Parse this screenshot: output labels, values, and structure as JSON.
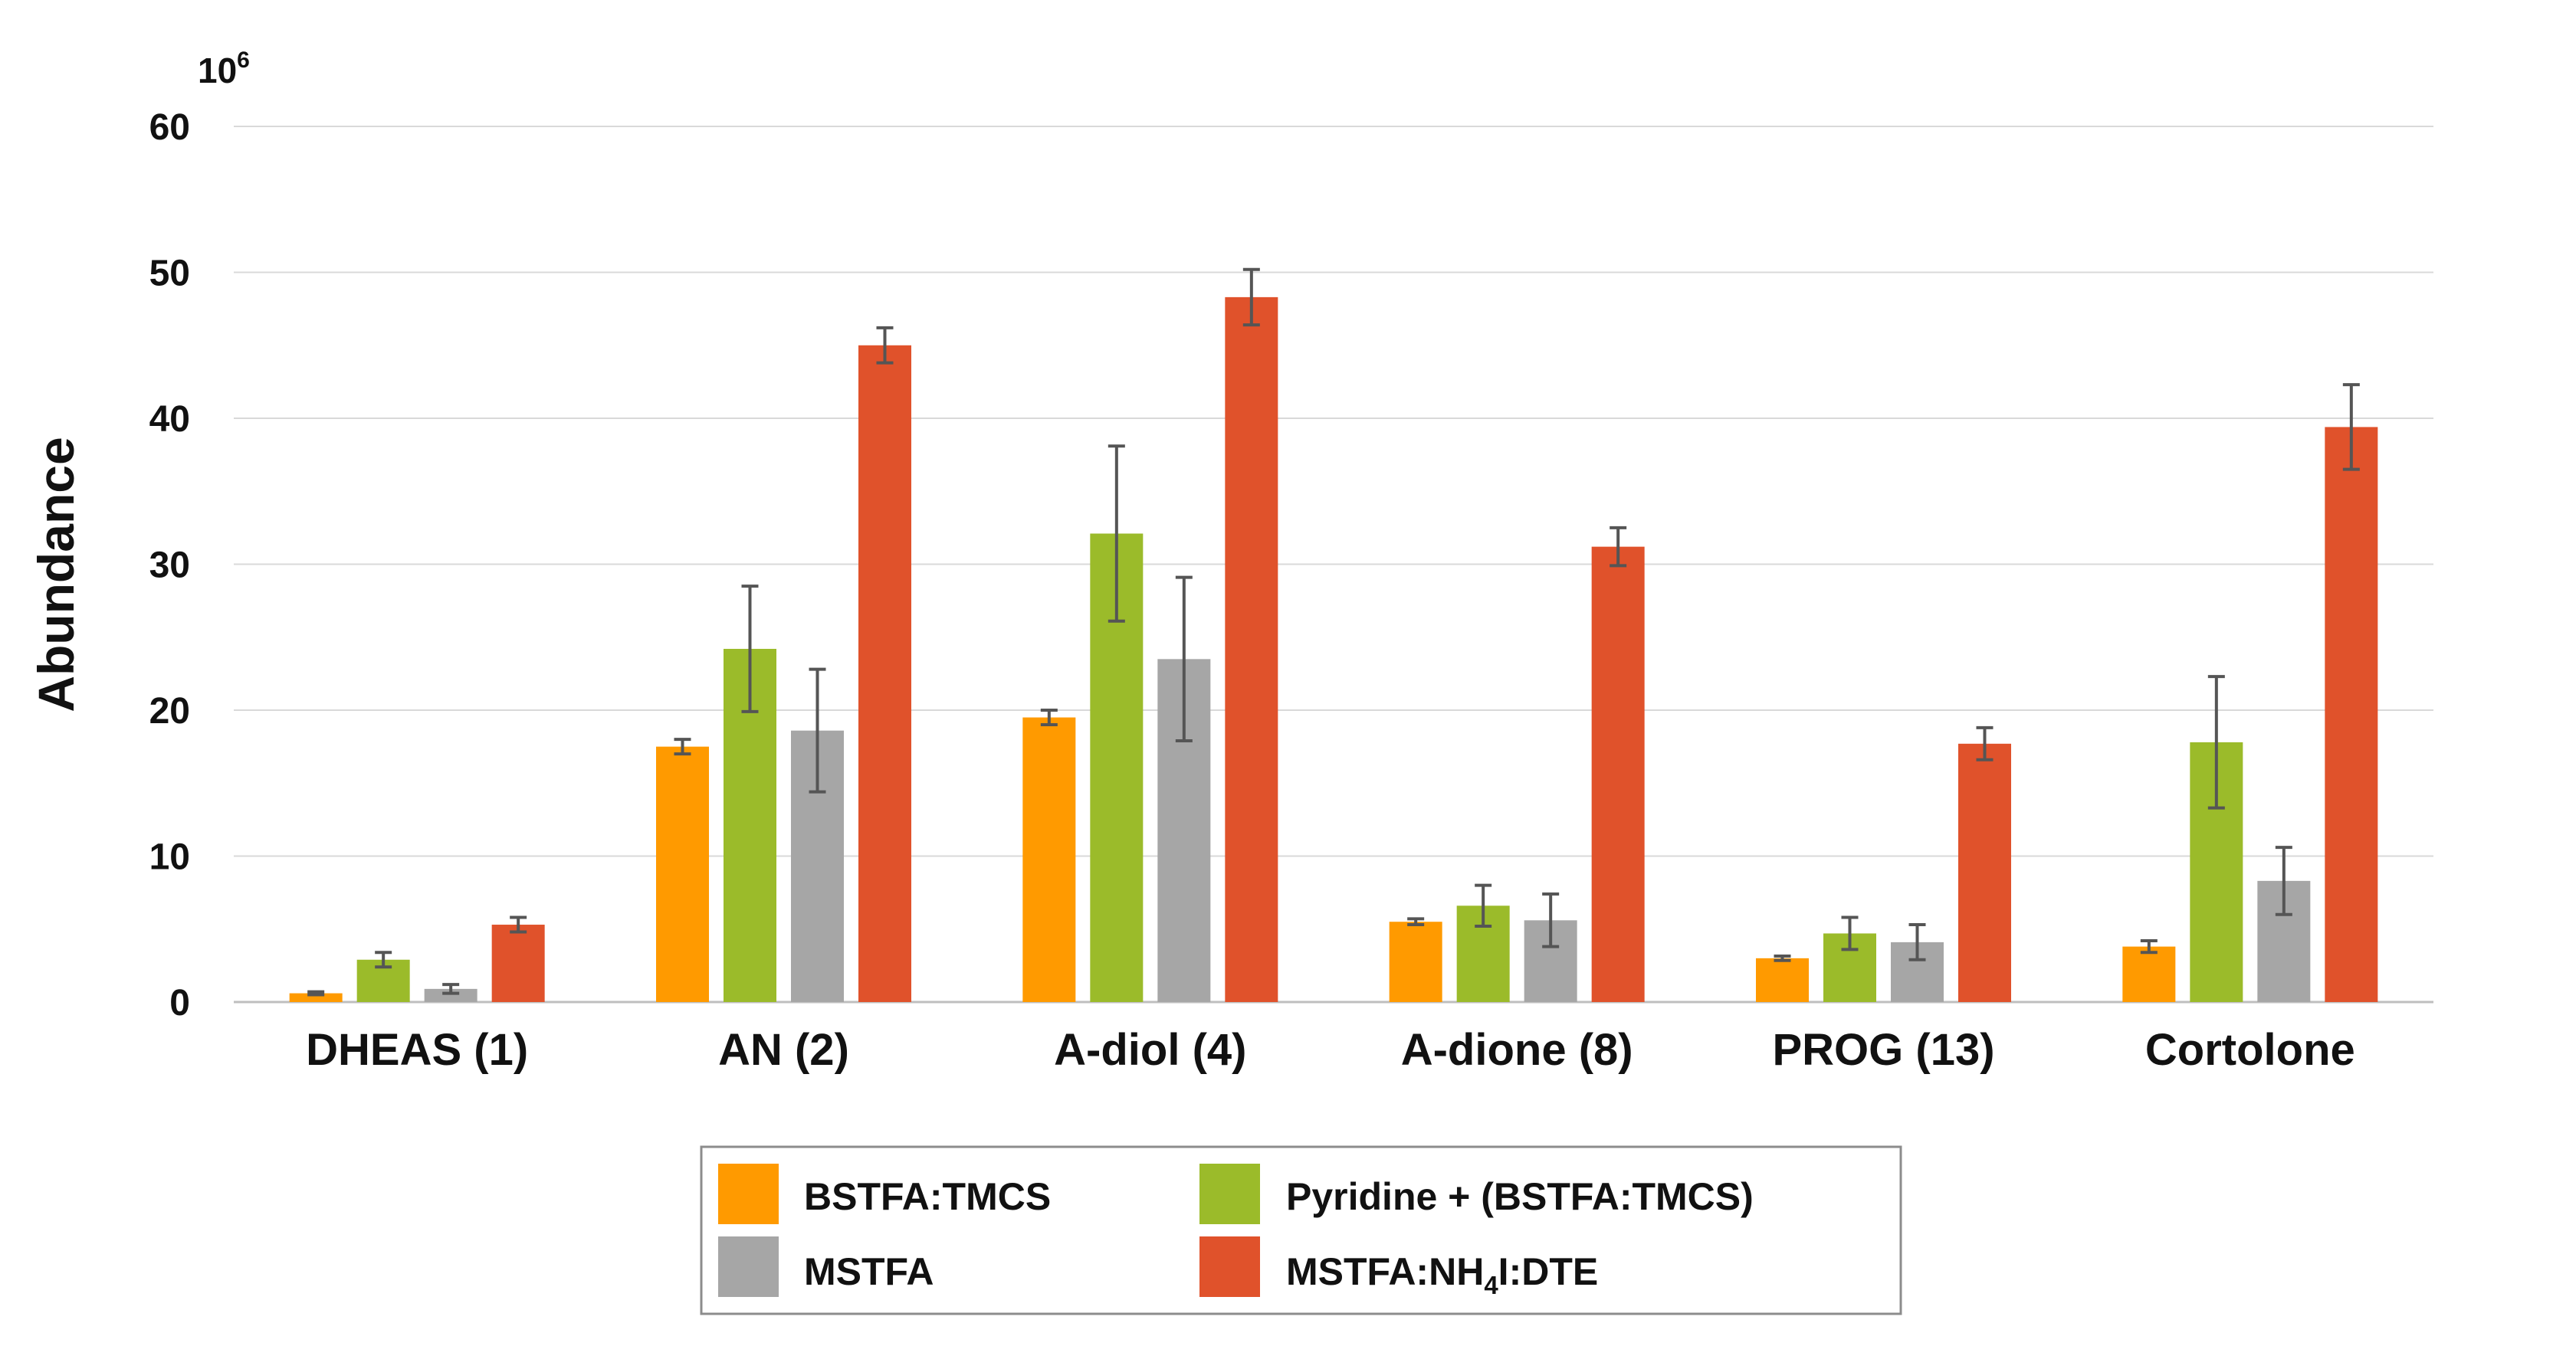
{
  "chart_data": {
    "type": "bar",
    "ylabel": "Abundance",
    "y_multiplier": "10",
    "y_multiplier_exp": "6",
    "ylim": [
      0,
      60
    ],
    "yticks": [
      0,
      10,
      20,
      30,
      40,
      50,
      60
    ],
    "grid": true,
    "legend_position": "bottom-center",
    "categories": [
      "DHEAS (1)",
      "AN (2)",
      "A-diol (4)",
      "A-dione (8)",
      "PROG (13)",
      "Cortolone"
    ],
    "series": [
      {
        "name": "BSTFA:TMCS",
        "color": "#FF9A00",
        "values": [
          0.6,
          17.5,
          19.5,
          5.5,
          3.0,
          3.8
        ],
        "errors": [
          0.1,
          0.5,
          0.5,
          0.2,
          0.15,
          0.4
        ]
      },
      {
        "name": "Pyridine + (BSTFA:TMCS)",
        "color": "#9BBB2A",
        "values": [
          2.9,
          24.2,
          32.1,
          6.6,
          4.7,
          17.8
        ],
        "errors": [
          0.5,
          4.3,
          6.0,
          1.4,
          1.1,
          4.5
        ]
      },
      {
        "name": "MSTFA",
        "color": "#A6A6A6",
        "values": [
          0.9,
          18.6,
          23.5,
          5.6,
          4.1,
          8.3
        ],
        "errors": [
          0.3,
          4.2,
          5.6,
          1.8,
          1.2,
          2.3
        ]
      },
      {
        "name_parts": [
          "MSTFA:NH",
          "4",
          "I:DTE"
        ],
        "color": "#E0522B",
        "values": [
          5.3,
          45.0,
          48.3,
          31.2,
          17.7,
          39.4
        ],
        "errors": [
          0.5,
          1.2,
          1.9,
          1.3,
          1.1,
          2.9
        ]
      }
    ]
  }
}
